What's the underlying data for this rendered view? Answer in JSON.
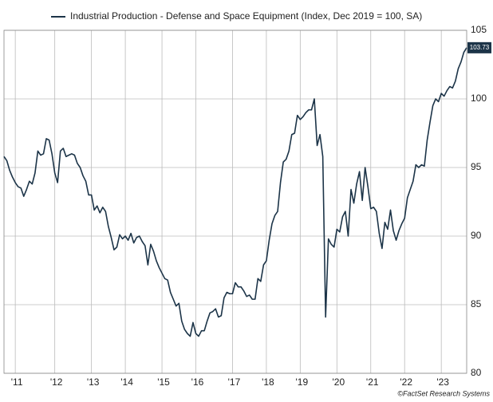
{
  "chart_data": {
    "type": "line",
    "categories": [
      null,
      null,
      null,
      null,
      "'11",
      null,
      null,
      null,
      null,
      null,
      null,
      null,
      null,
      null,
      null,
      null,
      null,
      null,
      "'12",
      null,
      null,
      null,
      null,
      null,
      null,
      null,
      null,
      null,
      null,
      null,
      null,
      "'13",
      null,
      null,
      null,
      null,
      null,
      null,
      null,
      null,
      null,
      null,
      null,
      "'14",
      null,
      null,
      null,
      null,
      null,
      null,
      null,
      null,
      null,
      null,
      null,
      null,
      "'15",
      null,
      null,
      null,
      null,
      null,
      null,
      null,
      null,
      null,
      null,
      null,
      "'16",
      null,
      null,
      null,
      null,
      null,
      null,
      null,
      null,
      null,
      null,
      null,
      null,
      "'17",
      null,
      null,
      null,
      null,
      null,
      null,
      null,
      null,
      null,
      null,
      null,
      "'18",
      null,
      null,
      null,
      null,
      null,
      null,
      null,
      null,
      null,
      null,
      null,
      "'19",
      null,
      null,
      null,
      null,
      null,
      null,
      null,
      null,
      null,
      null,
      null,
      null,
      "'20",
      null,
      null,
      null,
      null,
      null,
      null,
      null,
      null,
      null,
      null,
      null,
      "'21",
      null,
      null,
      null,
      null,
      null,
      null,
      null,
      null,
      null,
      null,
      null,
      "'22",
      null,
      null,
      null,
      null,
      null,
      null,
      null,
      null,
      null,
      null,
      null,
      null,
      "'23",
      null,
      null,
      null,
      null,
      null,
      null,
      null,
      null,
      null
    ],
    "series": [
      {
        "name": "Industrial Production - Defense and Space Equipment (Index, Dec 2019 = 100, SA)",
        "color": "#1c3448",
        "values": [
          95.8,
          95.5,
          94.8,
          94.3,
          93.9,
          93.6,
          93.5,
          92.9,
          93.4,
          94.0,
          93.8,
          94.6,
          96.2,
          95.9,
          96.0,
          97.1,
          97.0,
          96.0,
          94.6,
          93.9,
          96.2,
          96.4,
          95.8,
          95.9,
          96.0,
          95.9,
          95.3,
          95.0,
          94.4,
          94.0,
          93.0,
          93.0,
          91.9,
          92.2,
          91.7,
          92.1,
          91.8,
          90.7,
          89.9,
          89.0,
          89.2,
          90.1,
          89.8,
          90.0,
          89.7,
          90.2,
          89.5,
          89.9,
          90.0,
          89.6,
          89.3,
          87.9,
          89.4,
          88.9,
          88.2,
          87.7,
          87.3,
          86.9,
          86.8,
          85.9,
          85.4,
          84.9,
          85.1,
          83.8,
          83.2,
          82.9,
          82.7,
          83.7,
          82.9,
          82.7,
          83.1,
          83.1,
          83.8,
          84.4,
          84.5,
          84.7,
          84.1,
          84.2,
          85.5,
          85.9,
          85.8,
          85.8,
          86.6,
          86.3,
          86.3,
          86.0,
          85.6,
          85.7,
          85.4,
          85.4,
          86.9,
          86.7,
          87.9,
          88.2,
          89.7,
          90.9,
          91.5,
          91.8,
          93.9,
          95.4,
          95.6,
          96.2,
          97.4,
          97.5,
          98.8,
          98.5,
          98.7,
          99.0,
          99.2,
          99.2,
          100.0,
          96.6,
          97.4,
          95.8,
          84.1,
          89.8,
          89.4,
          89.2,
          90.5,
          90.3,
          91.4,
          91.8,
          90.0,
          93.4,
          92.4,
          93.8,
          94.7,
          92.6,
          95.0,
          93.6,
          92.0,
          92.1,
          91.8,
          90.2,
          89.1,
          91.0,
          90.5,
          91.9,
          90.4,
          89.7,
          90.4,
          90.9,
          91.3,
          92.8,
          93.4,
          94.0,
          95.2,
          95.0,
          95.2,
          95.1,
          97.0,
          98.3,
          99.5,
          100.0,
          99.8,
          100.4,
          100.2,
          100.6,
          100.9,
          100.8,
          101.3,
          102.2,
          102.7,
          103.4,
          103.73
        ]
      }
    ],
    "ylim": [
      80,
      105
    ],
    "yticks": [
      80,
      85,
      90,
      95,
      100,
      105
    ],
    "grid": true,
    "source": "©FactSet Research Systems"
  }
}
